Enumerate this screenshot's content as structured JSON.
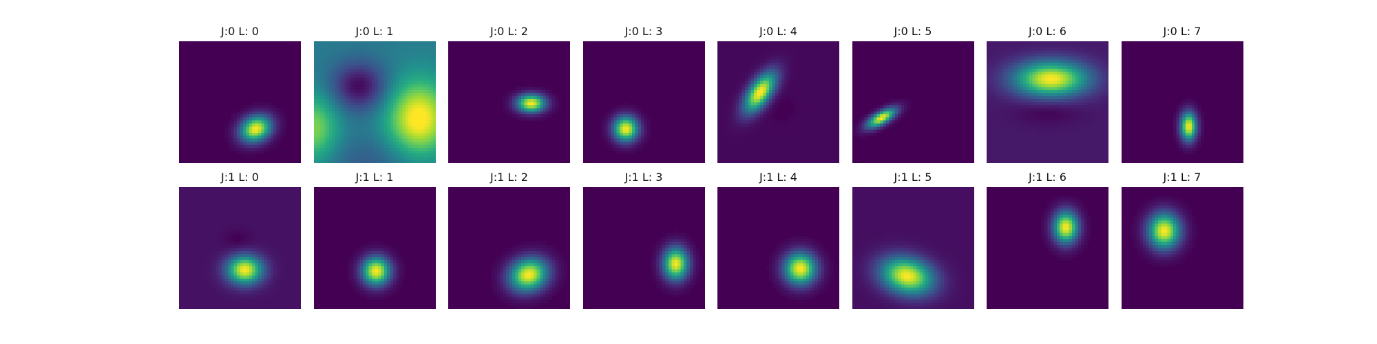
{
  "chart_data": {
    "type": "heatmap",
    "colormap": "viridis",
    "background_color": "#440154",
    "rows": 2,
    "cols": 8,
    "panels": [
      {
        "title": "J:0 L: 0",
        "row": 0,
        "col": 0,
        "bg": 0.0,
        "blobs": [
          {
            "cx": 0.63,
            "cy": 0.72,
            "sx": 0.09,
            "sy": 0.07,
            "rot": -25,
            "amp": 1.0
          }
        ]
      },
      {
        "title": "J:0 L: 1",
        "row": 0,
        "col": 1,
        "bg": 0.42,
        "blobs": [
          {
            "cx": 0.86,
            "cy": 0.64,
            "sx": 0.18,
            "sy": 0.22,
            "rot": 0,
            "amp": 0.62
          },
          {
            "cx": 0.0,
            "cy": 0.72,
            "sx": 0.14,
            "sy": 0.2,
            "rot": 0,
            "amp": 0.4
          },
          {
            "cx": 0.37,
            "cy": 0.37,
            "sx": 0.16,
            "sy": 0.14,
            "rot": 0,
            "amp": -0.4
          },
          {
            "cx": 0.5,
            "cy": 0.98,
            "sx": 0.35,
            "sy": 0.15,
            "rot": 0,
            "amp": -0.12
          }
        ]
      },
      {
        "title": "J:0 L: 2",
        "row": 0,
        "col": 2,
        "bg": 0.0,
        "blobs": [
          {
            "cx": 0.68,
            "cy": 0.51,
            "sx": 0.08,
            "sy": 0.05,
            "rot": 0,
            "amp": 1.0
          }
        ]
      },
      {
        "title": "J:0 L: 3",
        "row": 0,
        "col": 3,
        "bg": 0.0,
        "blobs": [
          {
            "cx": 0.35,
            "cy": 0.72,
            "sx": 0.07,
            "sy": 0.07,
            "rot": 0,
            "amp": 1.0
          }
        ]
      },
      {
        "title": "J:0 L: 4",
        "row": 0,
        "col": 4,
        "bg": 0.02,
        "blobs": [
          {
            "cx": 0.35,
            "cy": 0.42,
            "sx": 0.06,
            "sy": 0.13,
            "rot": 35,
            "amp": 1.0
          },
          {
            "cx": 0.52,
            "cy": 0.55,
            "sx": 0.08,
            "sy": 0.08,
            "rot": 0,
            "amp": -0.02
          }
        ]
      },
      {
        "title": "J:0 L: 5",
        "row": 0,
        "col": 5,
        "bg": 0.0,
        "blobs": [
          {
            "cx": 0.24,
            "cy": 0.63,
            "sx": 0.09,
            "sy": 0.035,
            "rot": -30,
            "amp": 1.0
          }
        ]
      },
      {
        "title": "J:0 L: 6",
        "row": 0,
        "col": 6,
        "bg": 0.07,
        "blobs": [
          {
            "cx": 0.53,
            "cy": 0.31,
            "sx": 0.21,
            "sy": 0.1,
            "rot": 0,
            "amp": 0.93
          },
          {
            "cx": 0.5,
            "cy": 0.58,
            "sx": 0.18,
            "sy": 0.07,
            "rot": 0,
            "amp": -0.07
          }
        ]
      },
      {
        "title": "J:0 L: 7",
        "row": 0,
        "col": 7,
        "bg": 0.0,
        "blobs": [
          {
            "cx": 0.55,
            "cy": 0.7,
            "sx": 0.045,
            "sy": 0.08,
            "rot": 0,
            "amp": 1.0
          }
        ]
      },
      {
        "title": "J:1 L: 0",
        "row": 1,
        "col": 0,
        "bg": 0.05,
        "blobs": [
          {
            "cx": 0.54,
            "cy": 0.68,
            "sx": 0.1,
            "sy": 0.08,
            "rot": 0,
            "amp": 0.95
          },
          {
            "cx": 0.48,
            "cy": 0.43,
            "sx": 0.08,
            "sy": 0.06,
            "rot": 0,
            "amp": -0.05
          }
        ]
      },
      {
        "title": "J:1 L: 1",
        "row": 1,
        "col": 1,
        "bg": 0.0,
        "blobs": [
          {
            "cx": 0.51,
            "cy": 0.69,
            "sx": 0.08,
            "sy": 0.08,
            "rot": 0,
            "amp": 1.0
          }
        ]
      },
      {
        "title": "J:1 L: 2",
        "row": 1,
        "col": 2,
        "bg": 0.0,
        "blobs": [
          {
            "cx": 0.66,
            "cy": 0.72,
            "sx": 0.11,
            "sy": 0.09,
            "rot": -20,
            "amp": 1.0
          }
        ]
      },
      {
        "title": "J:1 L: 3",
        "row": 1,
        "col": 3,
        "bg": 0.0,
        "blobs": [
          {
            "cx": 0.76,
            "cy": 0.63,
            "sx": 0.07,
            "sy": 0.09,
            "rot": 0,
            "amp": 1.0
          }
        ]
      },
      {
        "title": "J:1 L: 4",
        "row": 1,
        "col": 4,
        "bg": 0.0,
        "blobs": [
          {
            "cx": 0.68,
            "cy": 0.67,
            "sx": 0.09,
            "sy": 0.09,
            "rot": 0,
            "amp": 1.0
          }
        ]
      },
      {
        "title": "J:1 L: 5",
        "row": 1,
        "col": 5,
        "bg": 0.04,
        "blobs": [
          {
            "cx": 0.45,
            "cy": 0.73,
            "sx": 0.15,
            "sy": 0.1,
            "rot": 15,
            "amp": 0.96
          }
        ]
      },
      {
        "title": "J:1 L: 6",
        "row": 1,
        "col": 6,
        "bg": 0.0,
        "blobs": [
          {
            "cx": 0.65,
            "cy": 0.33,
            "sx": 0.07,
            "sy": 0.09,
            "rot": 0,
            "amp": 1.0
          }
        ]
      },
      {
        "title": "J:1 L: 7",
        "row": 1,
        "col": 7,
        "bg": 0.0,
        "blobs": [
          {
            "cx": 0.35,
            "cy": 0.36,
            "sx": 0.09,
            "sy": 0.1,
            "rot": 0,
            "amp": 1.0
          }
        ]
      }
    ]
  }
}
